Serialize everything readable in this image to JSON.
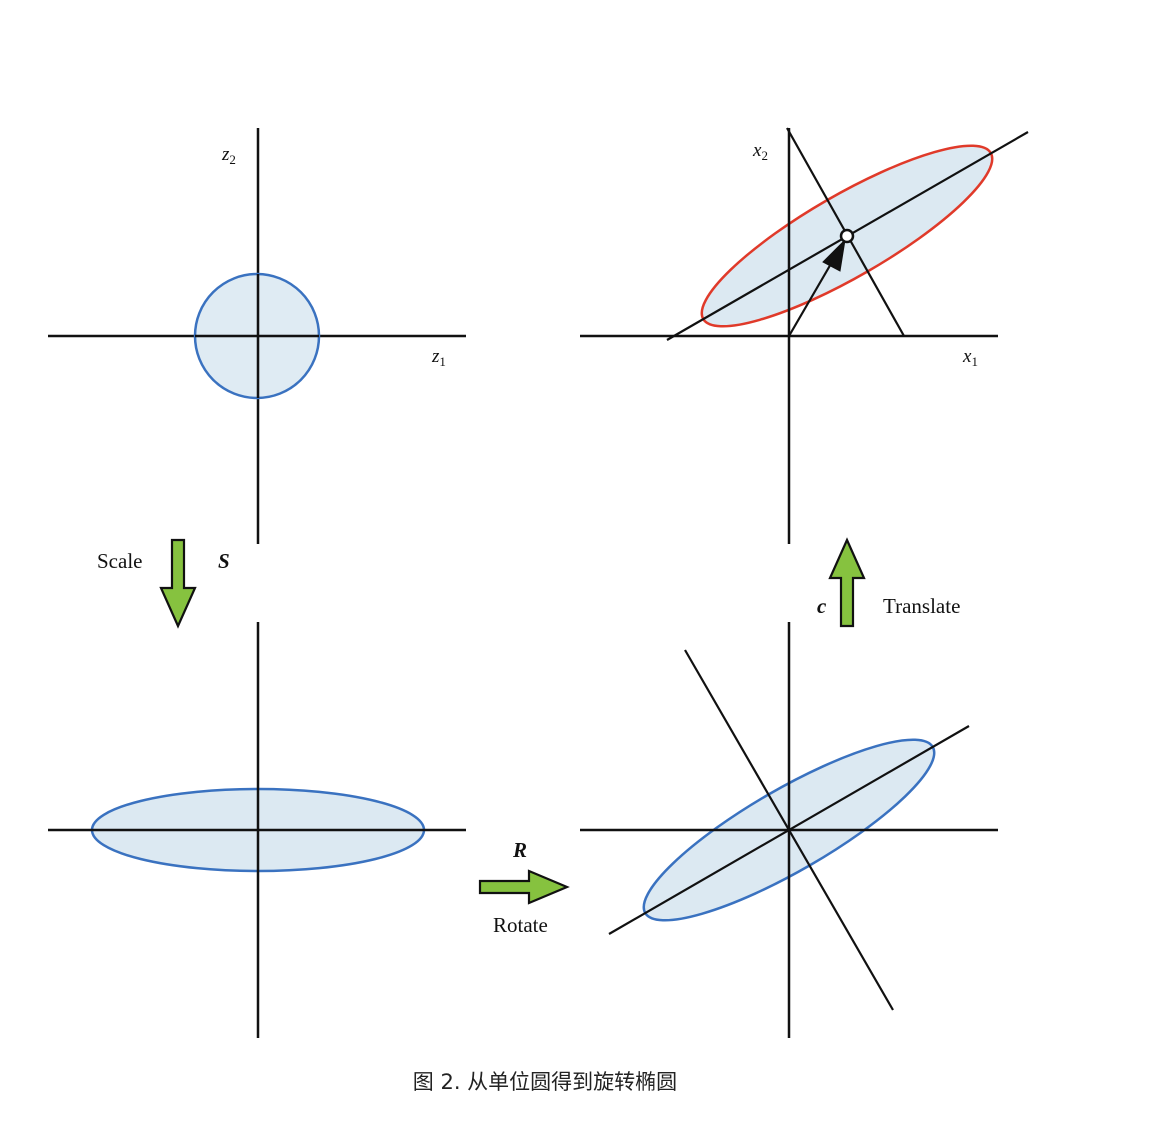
{
  "panels": {
    "unit_circle": {
      "x_label": "z",
      "x_sub": "1",
      "y_label": "z",
      "y_sub": "2"
    },
    "translated": {
      "x_label": "x",
      "x_sub": "1",
      "y_label": "x",
      "y_sub": "2"
    }
  },
  "steps": {
    "scale": {
      "label": "Scale",
      "symbol": "S"
    },
    "rotate": {
      "label": "Rotate",
      "symbol": "R"
    },
    "translate": {
      "label": "Translate",
      "symbol": "c"
    }
  },
  "caption": "图 2. 从单位圆得到旋转椭圆",
  "colors": {
    "axis": "#111111",
    "fill": "#dce9f2",
    "blue_outline": "#3a72c0",
    "red_outline": "#e03a2a",
    "arrow_fill": "#86c23f",
    "arrow_stroke": "#111111"
  }
}
